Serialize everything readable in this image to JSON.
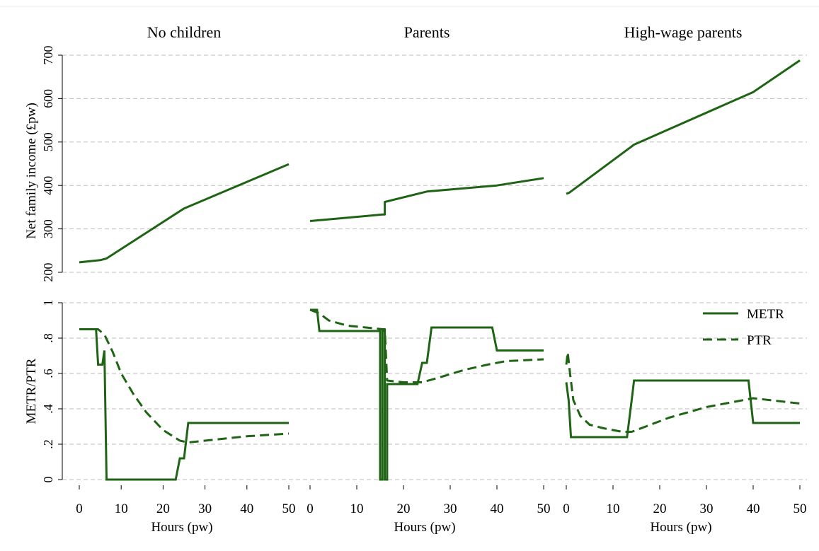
{
  "chart_data": {
    "type": "line",
    "color": "#1e6414",
    "grid": true,
    "grid_color": "#bdbdbd",
    "panels": [
      {
        "title": "No children",
        "key": "nochildren"
      },
      {
        "title": "Parents",
        "key": "parents"
      },
      {
        "title": "High-wage parents",
        "key": "highwage"
      }
    ],
    "xlabel": "Hours (pw)",
    "xlim": [
      0,
      50
    ],
    "xticks": [
      "0",
      "10",
      "20",
      "30",
      "40",
      "50"
    ],
    "top": {
      "ylabel": "Net family income (£pw)",
      "ylim": [
        200,
        700
      ],
      "yticks": [
        "200",
        "300",
        "400",
        "500",
        "600",
        "700"
      ],
      "series": {
        "nochildren": [
          [
            0,
            223
          ],
          [
            3,
            226
          ],
          [
            5,
            228
          ],
          [
            6.5,
            232
          ],
          [
            25,
            347
          ],
          [
            50,
            449
          ]
        ],
        "parents": [
          [
            0,
            318
          ],
          [
            15.5,
            333
          ],
          [
            16,
            333
          ],
          [
            16,
            362
          ],
          [
            25,
            386
          ],
          [
            40,
            400
          ],
          [
            50,
            417
          ]
        ],
        "highwage": [
          [
            0,
            381
          ],
          [
            0.6,
            383
          ],
          [
            14.5,
            494
          ],
          [
            40,
            615
          ],
          [
            50,
            688
          ]
        ]
      }
    },
    "bottom": {
      "ylabel": "METR/PTR",
      "ylim": [
        0,
        1
      ],
      "yticks": [
        "0",
        ".2",
        ".4",
        ".6",
        ".8",
        "1"
      ],
      "legend": {
        "placement": "top-right",
        "entries": [
          {
            "name": "METR",
            "style": "solid"
          },
          {
            "name": "PTR",
            "style": "dashed"
          }
        ]
      },
      "series": {
        "nochildren": {
          "METR": [
            [
              0,
              0.85
            ],
            [
              4,
              0.85
            ],
            [
              4.5,
              0.65
            ],
            [
              5.5,
              0.65
            ],
            [
              6,
              0.73
            ],
            [
              6.5,
              0
            ],
            [
              23,
              0
            ],
            [
              24,
              0.12
            ],
            [
              25,
              0.12
            ],
            [
              26,
              0.32
            ],
            [
              50,
              0.32
            ]
          ],
          "PTR": [
            [
              0,
              0.85
            ],
            [
              4.5,
              0.85
            ],
            [
              6,
              0.82
            ],
            [
              8,
              0.72
            ],
            [
              10,
              0.6
            ],
            [
              13,
              0.48
            ],
            [
              16,
              0.38
            ],
            [
              20,
              0.28
            ],
            [
              24,
              0.22
            ],
            [
              26,
              0.21
            ],
            [
              30,
              0.22
            ],
            [
              40,
              0.245
            ],
            [
              50,
              0.26
            ]
          ]
        },
        "parents": {
          "METR": [
            [
              0,
              0.96
            ],
            [
              1.5,
              0.96
            ],
            [
              2,
              0.84
            ],
            [
              15,
              0.84
            ],
            [
              15,
              0
            ],
            [
              15.5,
              0
            ],
            [
              15.5,
              0.84
            ],
            [
              16,
              0.84
            ],
            [
              16,
              0
            ],
            [
              16.5,
              0
            ],
            [
              16.5,
              0.54
            ],
            [
              23,
              0.54
            ],
            [
              24,
              0.66
            ],
            [
              25,
              0.66
            ],
            [
              26,
              0.86
            ],
            [
              39,
              0.86
            ],
            [
              40,
              0.73
            ],
            [
              50,
              0.73
            ]
          ],
          "PTR": [
            [
              0,
              0.96
            ],
            [
              2,
              0.94
            ],
            [
              4,
              0.9
            ],
            [
              8,
              0.87
            ],
            [
              12,
              0.86
            ],
            [
              15.5,
              0.85
            ],
            [
              16,
              0.85
            ],
            [
              16.5,
              0.56
            ],
            [
              20,
              0.55
            ],
            [
              24,
              0.55
            ],
            [
              28,
              0.58
            ],
            [
              33,
              0.62
            ],
            [
              38,
              0.65
            ],
            [
              42,
              0.67
            ],
            [
              50,
              0.68
            ]
          ]
        },
        "highwage": {
          "METR": [
            [
              0,
              0.55
            ],
            [
              0.5,
              0.45
            ],
            [
              1,
              0.24
            ],
            [
              13,
              0.24
            ],
            [
              14,
              0.45
            ],
            [
              14.5,
              0.56
            ],
            [
              39,
              0.56
            ],
            [
              40,
              0.32
            ],
            [
              50,
              0.32
            ]
          ],
          "PTR": [
            [
              0,
              0.65
            ],
            [
              0.3,
              0.72
            ],
            [
              0.8,
              0.6
            ],
            [
              1.5,
              0.45
            ],
            [
              3,
              0.36
            ],
            [
              5,
              0.31
            ],
            [
              8,
              0.29
            ],
            [
              12,
              0.27
            ],
            [
              14,
              0.27
            ],
            [
              17,
              0.3
            ],
            [
              22,
              0.35
            ],
            [
              30,
              0.41
            ],
            [
              38,
              0.45
            ],
            [
              40,
              0.46
            ],
            [
              50,
              0.43
            ]
          ]
        }
      }
    }
  }
}
